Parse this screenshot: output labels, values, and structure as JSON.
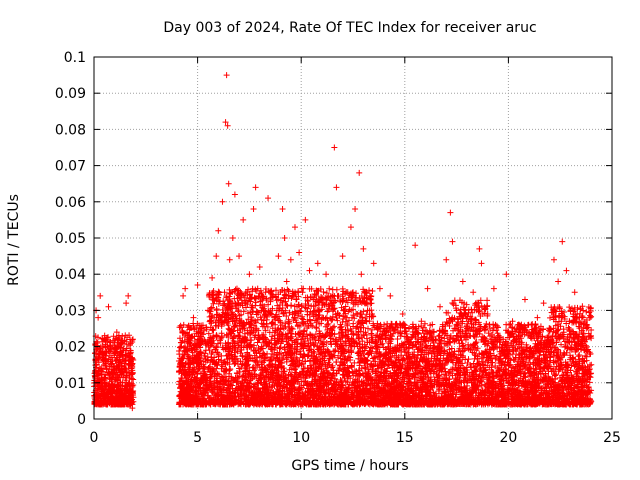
{
  "chart_data": {
    "type": "scatter",
    "title": "Day 003 of 2024, Rate Of TEC Index for receiver aruc",
    "xlabel": "GPS time / hours",
    "ylabel": "ROTI / TECUs",
    "xlim": [
      0,
      25
    ],
    "ylim": [
      0,
      0.1
    ],
    "x_ticks": [
      "0",
      "5",
      "10",
      "15",
      "20",
      "25"
    ],
    "y_ticks": [
      "0",
      "0.01",
      "0.02",
      "0.03",
      "0.04",
      "0.05",
      "0.06",
      "0.07",
      "0.08",
      "0.09",
      "0.1"
    ],
    "x_tick_values": [
      0,
      5,
      10,
      15,
      20,
      25
    ],
    "y_tick_values": [
      0,
      0.01,
      0.02,
      0.03,
      0.04,
      0.05,
      0.06,
      0.07,
      0.08,
      0.09,
      0.1
    ],
    "grid": true,
    "marker": "+",
    "marker_color": "#ff0000",
    "data_coverage_hours": [
      [
        0,
        1.9
      ],
      [
        4.1,
        24
      ]
    ],
    "points": [
      [
        0.1,
        0.008
      ],
      [
        0.1,
        0.03
      ],
      [
        0.15,
        0.012
      ],
      [
        0.2,
        0.028
      ],
      [
        0.25,
        0.005
      ],
      [
        0.3,
        0.034
      ],
      [
        0.35,
        0.01
      ],
      [
        0.4,
        0.018
      ],
      [
        0.45,
        0.007
      ],
      [
        0.5,
        0.022
      ],
      [
        0.55,
        0.009
      ],
      [
        0.6,
        0.014
      ],
      [
        0.65,
        0.006
      ],
      [
        0.7,
        0.031
      ],
      [
        0.75,
        0.011
      ],
      [
        0.8,
        0.02
      ],
      [
        0.85,
        0.004
      ],
      [
        0.9,
        0.016
      ],
      [
        0.95,
        0.008
      ],
      [
        1.0,
        0.013
      ],
      [
        1.05,
        0.007
      ],
      [
        1.1,
        0.024
      ],
      [
        1.15,
        0.009
      ],
      [
        1.2,
        0.015
      ],
      [
        1.3,
        0.006
      ],
      [
        1.4,
        0.019
      ],
      [
        1.5,
        0.01
      ],
      [
        1.55,
        0.032
      ],
      [
        1.6,
        0.012
      ],
      [
        1.65,
        0.034
      ],
      [
        1.7,
        0.008
      ],
      [
        1.75,
        0.018
      ],
      [
        1.8,
        0.005
      ],
      [
        1.85,
        0.003
      ],
      [
        1.9,
        0.006
      ],
      [
        4.2,
        0.015
      ],
      [
        4.3,
        0.034
      ],
      [
        4.35,
        0.008
      ],
      [
        4.4,
        0.036
      ],
      [
        4.5,
        0.012
      ],
      [
        4.6,
        0.022
      ],
      [
        4.7,
        0.009
      ],
      [
        4.8,
        0.028
      ],
      [
        4.9,
        0.011
      ],
      [
        5.0,
        0.037
      ],
      [
        5.1,
        0.014
      ],
      [
        5.2,
        0.025
      ],
      [
        5.3,
        0.007
      ],
      [
        5.4,
        0.019
      ],
      [
        5.5,
        0.03
      ],
      [
        5.6,
        0.013
      ],
      [
        5.7,
        0.039
      ],
      [
        5.8,
        0.017
      ],
      [
        5.9,
        0.045
      ],
      [
        6.0,
        0.052
      ],
      [
        6.1,
        0.021
      ],
      [
        6.2,
        0.06
      ],
      [
        6.3,
        0.035
      ],
      [
        6.35,
        0.082
      ],
      [
        6.4,
        0.095
      ],
      [
        6.45,
        0.081
      ],
      [
        6.5,
        0.065
      ],
      [
        6.55,
        0.044
      ],
      [
        6.6,
        0.028
      ],
      [
        6.7,
        0.05
      ],
      [
        6.8,
        0.062
      ],
      [
        6.9,
        0.036
      ],
      [
        7.0,
        0.045
      ],
      [
        7.1,
        0.021
      ],
      [
        7.2,
        0.055
      ],
      [
        7.3,
        0.032
      ],
      [
        7.4,
        0.018
      ],
      [
        7.5,
        0.04
      ],
      [
        7.6,
        0.027
      ],
      [
        7.7,
        0.058
      ],
      [
        7.8,
        0.064
      ],
      [
        7.9,
        0.036
      ],
      [
        8.0,
        0.042
      ],
      [
        8.1,
        0.016
      ],
      [
        8.2,
        0.03
      ],
      [
        8.3,
        0.022
      ],
      [
        8.4,
        0.061
      ],
      [
        8.5,
        0.035
      ],
      [
        8.6,
        0.018
      ],
      [
        8.7,
        0.028
      ],
      [
        8.8,
        0.012
      ],
      [
        8.9,
        0.045
      ],
      [
        9.0,
        0.025
      ],
      [
        9.1,
        0.058
      ],
      [
        9.2,
        0.05
      ],
      [
        9.3,
        0.038
      ],
      [
        9.4,
        0.02
      ],
      [
        9.5,
        0.044
      ],
      [
        9.6,
        0.016
      ],
      [
        9.7,
        0.053
      ],
      [
        9.8,
        0.031
      ],
      [
        9.9,
        0.046
      ],
      [
        10.0,
        0.022
      ],
      [
        10.1,
        0.036
      ],
      [
        10.2,
        0.055
      ],
      [
        10.3,
        0.027
      ],
      [
        10.4,
        0.041
      ],
      [
        10.5,
        0.014
      ],
      [
        10.6,
        0.033
      ],
      [
        10.7,
        0.021
      ],
      [
        10.8,
        0.043
      ],
      [
        10.9,
        0.03
      ],
      [
        11.0,
        0.018
      ],
      [
        11.2,
        0.04
      ],
      [
        11.4,
        0.025
      ],
      [
        11.6,
        0.075
      ],
      [
        11.7,
        0.064
      ],
      [
        11.8,
        0.034
      ],
      [
        12.0,
        0.045
      ],
      [
        12.2,
        0.028
      ],
      [
        12.4,
        0.053
      ],
      [
        12.6,
        0.058
      ],
      [
        12.8,
        0.068
      ],
      [
        12.9,
        0.04
      ],
      [
        13.0,
        0.047
      ],
      [
        13.2,
        0.03
      ],
      [
        13.5,
        0.043
      ],
      [
        13.8,
        0.036
      ],
      [
        14.0,
        0.025
      ],
      [
        14.3,
        0.034
      ],
      [
        14.6,
        0.019
      ],
      [
        14.9,
        0.029
      ],
      [
        15.2,
        0.022
      ],
      [
        15.5,
        0.048
      ],
      [
        15.8,
        0.027
      ],
      [
        16.1,
        0.036
      ],
      [
        16.4,
        0.021
      ],
      [
        16.7,
        0.031
      ],
      [
        17.0,
        0.044
      ],
      [
        17.2,
        0.057
      ],
      [
        17.3,
        0.049
      ],
      [
        17.5,
        0.03
      ],
      [
        17.8,
        0.038
      ],
      [
        18.0,
        0.025
      ],
      [
        18.3,
        0.035
      ],
      [
        18.6,
        0.047
      ],
      [
        18.7,
        0.043
      ],
      [
        19.0,
        0.029
      ],
      [
        19.3,
        0.036
      ],
      [
        19.6,
        0.022
      ],
      [
        19.9,
        0.04
      ],
      [
        20.2,
        0.027
      ],
      [
        20.5,
        0.024
      ],
      [
        20.8,
        0.033
      ],
      [
        21.1,
        0.019
      ],
      [
        21.4,
        0.028
      ],
      [
        21.7,
        0.032
      ],
      [
        22.0,
        0.025
      ],
      [
        22.2,
        0.044
      ],
      [
        22.4,
        0.038
      ],
      [
        22.6,
        0.049
      ],
      [
        22.8,
        0.041
      ],
      [
        23.0,
        0.03
      ],
      [
        23.2,
        0.035
      ],
      [
        23.4,
        0.021
      ],
      [
        23.6,
        0.028
      ],
      [
        23.8,
        0.026
      ],
      [
        24.0,
        0.015
      ]
    ]
  }
}
